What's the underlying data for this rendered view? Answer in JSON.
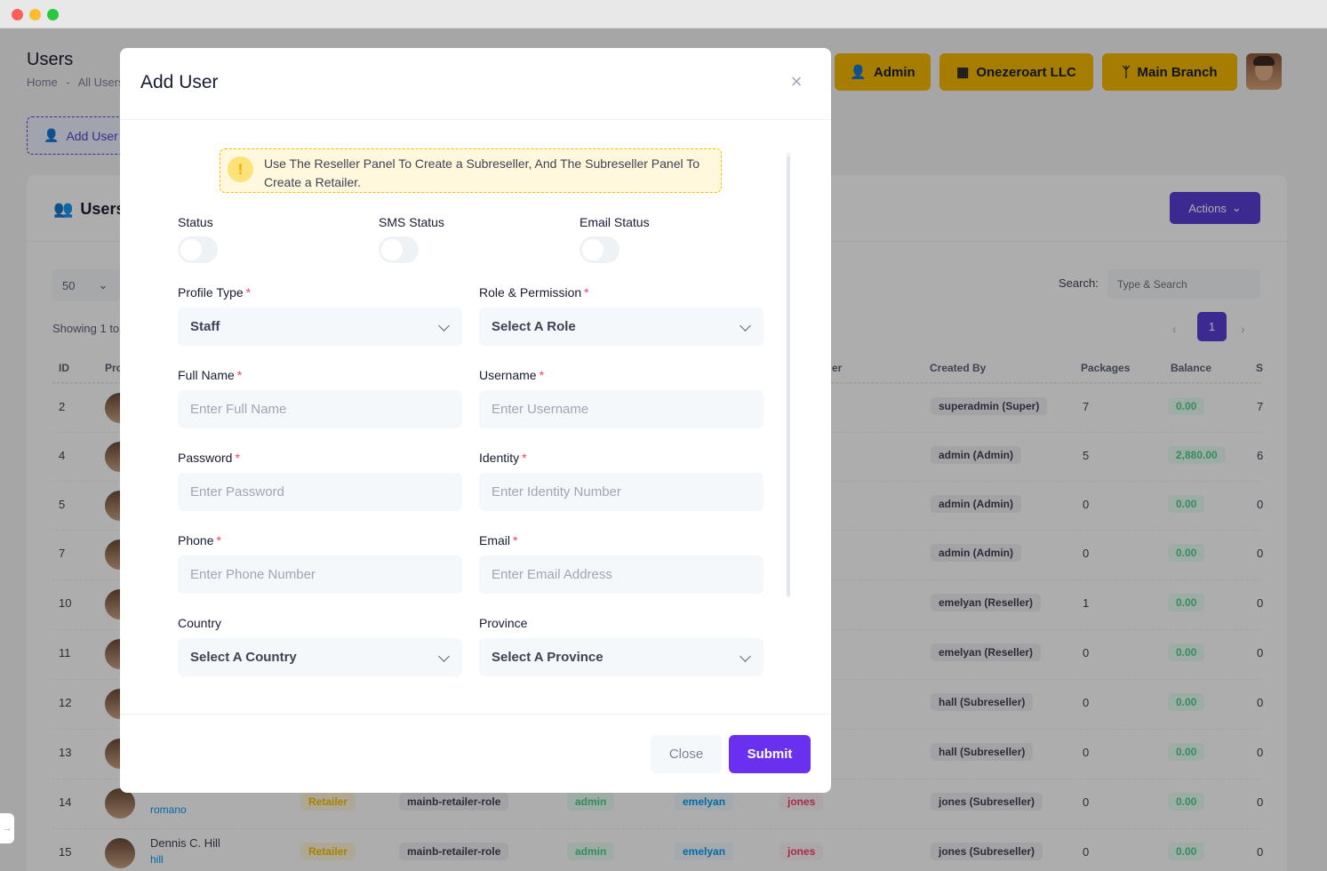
{
  "header": {
    "page_title": "Users",
    "breadcrumb": [
      "Home",
      "-",
      "All Users"
    ],
    "add_user_label": "Add User",
    "top_buttons": [
      {
        "label": "Admin",
        "icon": "user-icon"
      },
      {
        "label": "Onezeroart LLC",
        "icon": "sitemap-icon"
      },
      {
        "label": "Main Branch",
        "icon": "branch-icon"
      }
    ],
    "accent_yellow": "#f6b900"
  },
  "card": {
    "title": "Users",
    "actions_label": "Actions",
    "page_size": "50",
    "showing": "Showing 1 to",
    "search_label": "Search:",
    "search_placeholder": "Type & Search",
    "current_page": "1",
    "columns": [
      "ID",
      "Pro",
      "er",
      "Created By",
      "Packages",
      "Balance",
      "S"
    ],
    "rows": [
      {
        "id": "2",
        "created_by": "superadmin (Super)",
        "packages": "7",
        "balance": "0.00",
        "extra": "7"
      },
      {
        "id": "4",
        "created_by": "admin (Admin)",
        "packages": "5",
        "balance": "2,880.00",
        "extra": "6"
      },
      {
        "id": "5",
        "created_by": "admin (Admin)",
        "packages": "0",
        "balance": "0.00",
        "extra": "0"
      },
      {
        "id": "7",
        "created_by": "admin (Admin)",
        "packages": "0",
        "balance": "0.00",
        "extra": "0"
      },
      {
        "id": "10",
        "created_by": "emelyan (Reseller)",
        "packages": "1",
        "balance": "0.00",
        "extra": "0"
      },
      {
        "id": "11",
        "created_by": "emelyan (Reseller)",
        "packages": "0",
        "balance": "0.00",
        "extra": "0"
      },
      {
        "id": "12",
        "created_by": "hall (Subreseller)",
        "packages": "0",
        "balance": "0.00",
        "extra": "0"
      },
      {
        "id": "13",
        "created_by": "hall (Subreseller)",
        "packages": "0",
        "balance": "0.00",
        "extra": "0"
      },
      {
        "id": "14",
        "name": "",
        "username": "romano",
        "type": "Retailer",
        "role": "mainb-retailer-role",
        "admin": "admin",
        "reseller": "emelyan",
        "subreseller": "jones",
        "created_by": "jones (Subreseller)",
        "packages": "0",
        "balance": "0.00",
        "extra": "0"
      },
      {
        "id": "15",
        "name": "Dennis C. Hill",
        "username": "hill",
        "type": "Retailer",
        "role": "mainb-retailer-role",
        "admin": "admin",
        "reseller": "emelyan",
        "subreseller": "jones",
        "created_by": "jones (Subreseller)",
        "packages": "0",
        "balance": "0.00",
        "extra": "0"
      }
    ]
  },
  "modal": {
    "title": "Add User",
    "notice": "Use The Reseller Panel To Create a Subreseller, And The Subreseller Panel To Create a Retailer.",
    "toggles": [
      {
        "label": "Status",
        "on": false
      },
      {
        "label": "SMS Status",
        "on": false
      },
      {
        "label": "Email Status",
        "on": false
      }
    ],
    "required_mark": "*",
    "fields": {
      "profile_type": {
        "label": "Profile Type",
        "value": "Staff"
      },
      "role": {
        "label": "Role & Permission",
        "value": "Select A Role"
      },
      "full_name": {
        "label": "Full Name",
        "placeholder": "Enter Full Name"
      },
      "username": {
        "label": "Username",
        "placeholder": "Enter Username"
      },
      "password": {
        "label": "Password",
        "placeholder": "Enter Password"
      },
      "identity": {
        "label": "Identity",
        "placeholder": "Enter Identity Number"
      },
      "phone": {
        "label": "Phone",
        "placeholder": "Enter Phone Number"
      },
      "email": {
        "label": "Email",
        "placeholder": "Enter Email Address"
      },
      "country": {
        "label": "Country",
        "value": "Select A Country"
      },
      "province": {
        "label": "Province",
        "value": "Select A Province"
      }
    },
    "close_label": "Close",
    "submit_label": "Submit",
    "submit_color": "#6a30f0"
  }
}
